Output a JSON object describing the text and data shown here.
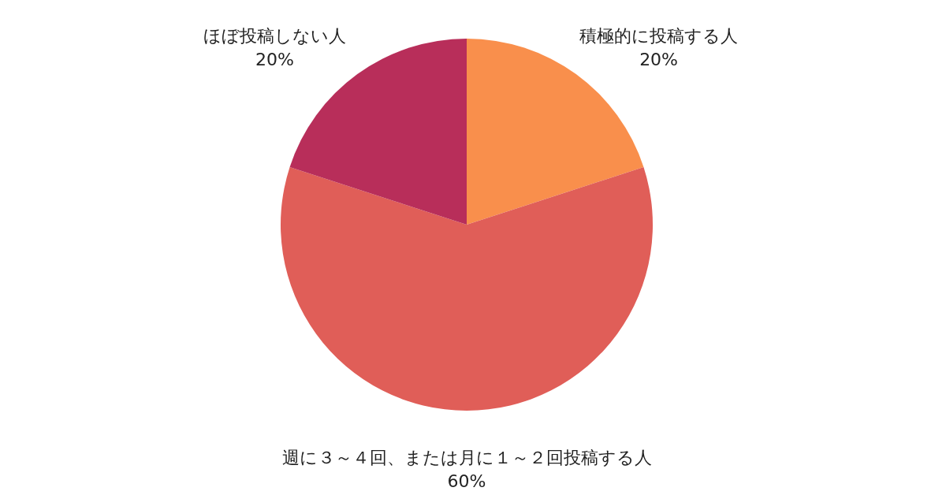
{
  "chart_data": {
    "type": "pie",
    "categories": [
      "積極的に投稿する人",
      "週に３～４回、または月に１～２回投稿する人",
      "ほぼ投稿しない人"
    ],
    "values": [
      20,
      60,
      20
    ],
    "colors": [
      "#f98f4c",
      "#e05e58",
      "#b82e5a"
    ],
    "value_labels": [
      "20%",
      "60%",
      "20%"
    ]
  }
}
